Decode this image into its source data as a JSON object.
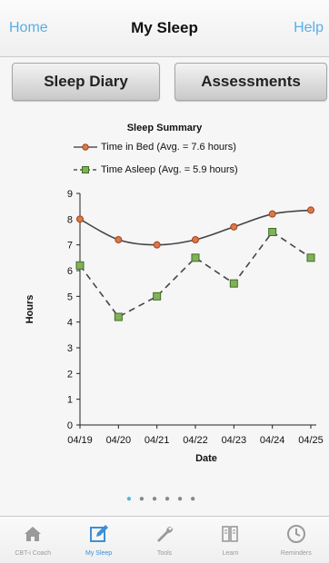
{
  "navbar": {
    "left": "Home",
    "title": "My Sleep",
    "right": "Help"
  },
  "segments": {
    "diary": "Sleep Diary",
    "assessments": "Assessments"
  },
  "chart_data": {
    "type": "line",
    "title": "Sleep Summary",
    "xlabel": "Date",
    "ylabel": "Hours",
    "categories": [
      "04/19",
      "04/20",
      "04/21",
      "04/22",
      "04/23",
      "04/24",
      "04/25"
    ],
    "ylim": [
      0,
      9
    ],
    "yticks": [
      "0",
      "1",
      "2",
      "3",
      "4",
      "5",
      "6",
      "7",
      "8",
      "9"
    ],
    "grid": false,
    "legend": "top",
    "series": [
      {
        "name": "Time in Bed (Avg. = 7.6 hours)",
        "values": [
          8.0,
          7.2,
          7.0,
          7.2,
          7.7,
          8.2,
          8.35
        ],
        "color": "#c85a2a",
        "marker": "circle",
        "line": "solid"
      },
      {
        "name": "Time Asleep (Avg. = 5.9 hours)",
        "values": [
          6.2,
          4.2,
          5.0,
          6.5,
          5.5,
          7.5,
          6.5
        ],
        "color": "#4e8a2c",
        "marker": "square",
        "line": "dashed"
      }
    ]
  },
  "pager": {
    "count": 6,
    "active": 0
  },
  "tabs": [
    {
      "label": "CBT-i Coach",
      "icon": "home-icon"
    },
    {
      "label": "My Sleep",
      "icon": "edit-icon"
    },
    {
      "label": "Tools",
      "icon": "wrench-icon"
    },
    {
      "label": "Learn",
      "icon": "book-icon"
    },
    {
      "label": "Reminders",
      "icon": "clock-icon"
    }
  ],
  "colors": {
    "accent": "#5aaee6",
    "tab_active": "#3d8fd6"
  }
}
